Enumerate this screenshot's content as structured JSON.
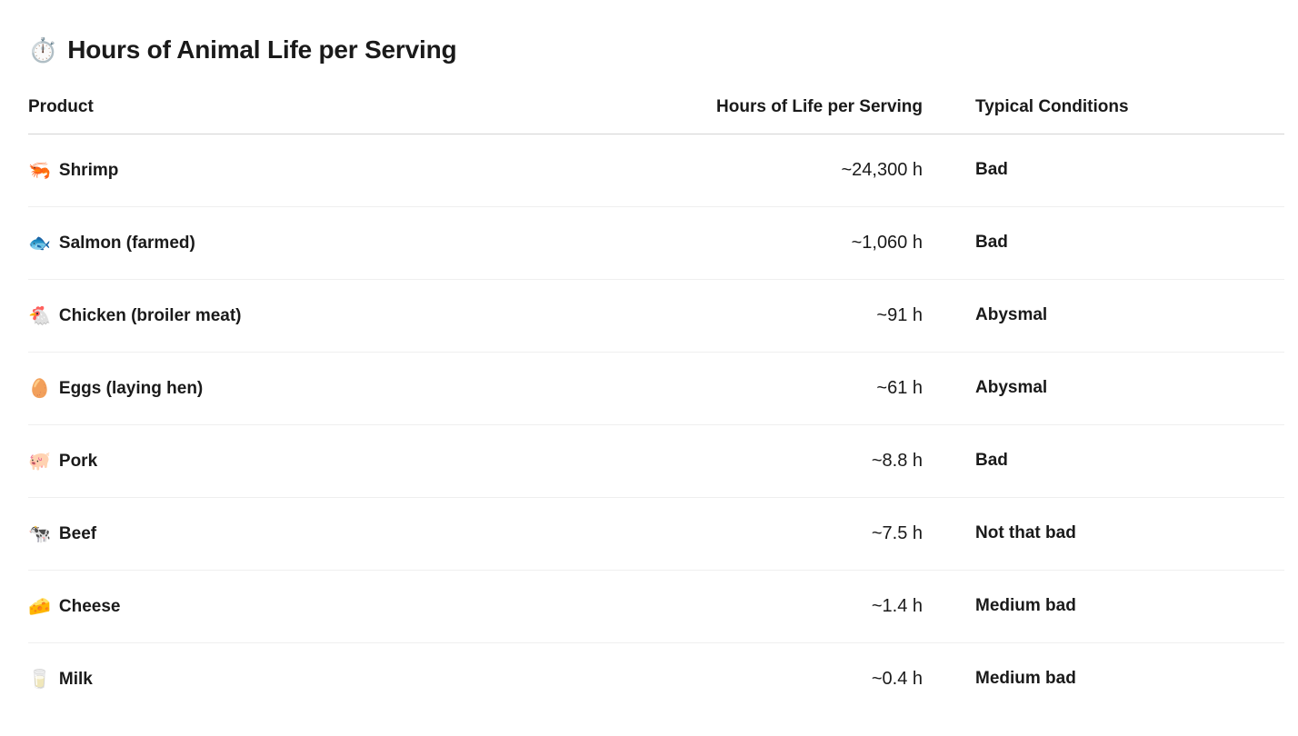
{
  "page": {
    "title_emoji": "⏱️",
    "title": "Hours of Animal Life per Serving"
  },
  "table": {
    "columns": {
      "product": "Product",
      "hours": "Hours of Life per Serving",
      "conditions": "Typical Conditions"
    },
    "rows": [
      {
        "emoji": "🦐",
        "product": "Shrimp",
        "hours": "~24,300 h",
        "conditions": "Bad"
      },
      {
        "emoji": "🐟",
        "product": "Salmon (farmed)",
        "hours": "~1,060 h",
        "conditions": "Bad"
      },
      {
        "emoji": "🐔",
        "product": "Chicken (broiler meat)",
        "hours": "~91 h",
        "conditions": "Abysmal"
      },
      {
        "emoji": "🥚",
        "product": "Eggs (laying hen)",
        "hours": "~61 h",
        "conditions": "Abysmal"
      },
      {
        "emoji": "🐖",
        "product": "Pork",
        "hours": "~8.8 h",
        "conditions": "Bad"
      },
      {
        "emoji": "🐄",
        "product": "Beef",
        "hours": "~7.5 h",
        "conditions": "Not that bad"
      },
      {
        "emoji": "🧀",
        "product": "Cheese",
        "hours": "~1.4 h",
        "conditions": "Medium bad"
      },
      {
        "emoji": "🥛",
        "product": "Milk",
        "hours": "~0.4 h",
        "conditions": "Medium bad"
      }
    ]
  },
  "colors": {
    "text": "#1a1a1a",
    "header_border": "#d4d4d4",
    "row_border": "#efefef",
    "background": "#ffffff"
  }
}
